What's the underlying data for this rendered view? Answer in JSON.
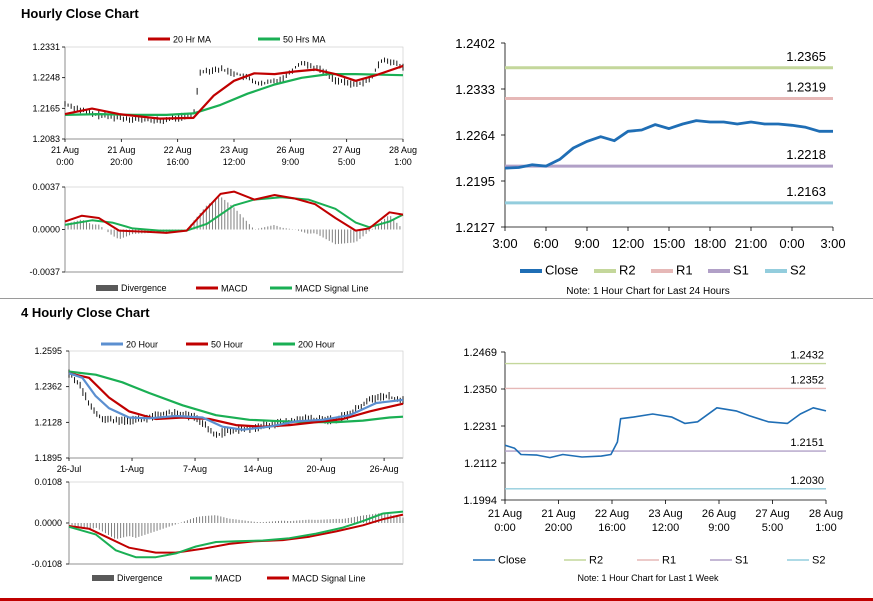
{
  "sections": {
    "hourly_title": "Hourly Close Chart",
    "four_hourly_title": "4 Hourly Close Chart"
  },
  "colors": {
    "close": "#1f6eb5",
    "ma20": "#c00000",
    "ma50": "#1aaf54",
    "ma200": "#1aaf54",
    "hourly_ma50": "#1aaf54",
    "macd_red": "#c00000",
    "signal_green": "#1aaf54",
    "divergence": "#7f7f7f",
    "r2": "#c4d79b",
    "r1": "#e6b8b7",
    "s1": "#b1a0c7",
    "s2": "#93cddd",
    "section_rule": "#9a9a9a",
    "bottom_rule": "#c00000"
  },
  "chart_data": [
    {
      "id": "hourly_price",
      "type": "line",
      "title": "Hourly Close Chart",
      "legend": [
        "20 Hr MA",
        "50 Hrs MA"
      ],
      "x_tick_labels": [
        [
          "21 Aug",
          "0:00"
        ],
        [
          "21 Aug",
          "20:00"
        ],
        [
          "22 Aug",
          "16:00"
        ],
        [
          "23 Aug",
          "12:00"
        ],
        [
          "26 Aug",
          "9:00"
        ],
        [
          "27 Aug",
          "5:00"
        ],
        [
          "28 Aug",
          "1:00"
        ]
      ],
      "y_tick_labels": [
        "1.2331",
        "1.2248",
        "1.2165",
        "1.2083"
      ],
      "ylim": [
        1.2083,
        1.2331
      ],
      "n_points": 100,
      "close": [
        [
          0,
          1.2178
        ],
        [
          8,
          1.215
        ],
        [
          16,
          1.214
        ],
        [
          28,
          1.2132
        ],
        [
          38,
          1.2148
        ],
        [
          40,
          1.2265
        ],
        [
          46,
          1.2272
        ],
        [
          52,
          1.2255
        ],
        [
          58,
          1.223
        ],
        [
          64,
          1.2245
        ],
        [
          70,
          1.229
        ],
        [
          76,
          1.2268
        ],
        [
          80,
          1.2242
        ],
        [
          85,
          1.223
        ],
        [
          90,
          1.224
        ],
        [
          94,
          1.23
        ],
        [
          97,
          1.229
        ],
        [
          100,
          1.2275
        ]
      ],
      "ma20": [
        [
          0,
          1.215
        ],
        [
          8,
          1.2165
        ],
        [
          16,
          1.215
        ],
        [
          28,
          1.2138
        ],
        [
          38,
          1.214
        ],
        [
          44,
          1.22
        ],
        [
          50,
          1.224
        ],
        [
          56,
          1.226
        ],
        [
          62,
          1.2258
        ],
        [
          68,
          1.2265
        ],
        [
          74,
          1.227
        ],
        [
          80,
          1.2258
        ],
        [
          86,
          1.224
        ],
        [
          92,
          1.2255
        ],
        [
          100,
          1.228
        ]
      ],
      "ma50": [
        [
          0,
          1.2148
        ],
        [
          10,
          1.215
        ],
        [
          20,
          1.2148
        ],
        [
          30,
          1.2148
        ],
        [
          38,
          1.2152
        ],
        [
          46,
          1.2175
        ],
        [
          54,
          1.2205
        ],
        [
          62,
          1.223
        ],
        [
          70,
          1.2248
        ],
        [
          78,
          1.2258
        ],
        [
          86,
          1.2258
        ],
        [
          100,
          1.2255
        ]
      ]
    },
    {
      "id": "hourly_macd",
      "type": "line",
      "legend": [
        "Divergence",
        "MACD",
        "MACD Signal Line"
      ],
      "y_tick_labels": [
        "0.0037",
        "0.0000",
        "-0.0037"
      ],
      "ylim": [
        -0.0037,
        0.0037
      ],
      "macd": [
        [
          0,
          0.0007
        ],
        [
          5,
          0.0012
        ],
        [
          10,
          0.001
        ],
        [
          16,
          -0.0001
        ],
        [
          24,
          -0.0002
        ],
        [
          30,
          -0.0003
        ],
        [
          36,
          -0.0001
        ],
        [
          40,
          0.0012
        ],
        [
          46,
          0.0031
        ],
        [
          50,
          0.0033
        ],
        [
          56,
          0.0026
        ],
        [
          62,
          0.003
        ],
        [
          68,
          0.0027
        ],
        [
          74,
          0.0022
        ],
        [
          80,
          0.001
        ],
        [
          86,
          -0.0001
        ],
        [
          90,
          0.0001
        ],
        [
          96,
          0.0015
        ],
        [
          100,
          0.0013
        ]
      ],
      "signal": [
        [
          0,
          0.0004
        ],
        [
          8,
          0.0008
        ],
        [
          14,
          0.0006
        ],
        [
          20,
          0.0001
        ],
        [
          28,
          -0.0001
        ],
        [
          36,
          -0.0001
        ],
        [
          42,
          0.0005
        ],
        [
          50,
          0.0021
        ],
        [
          56,
          0.0026
        ],
        [
          64,
          0.0028
        ],
        [
          72,
          0.0026
        ],
        [
          80,
          0.0018
        ],
        [
          86,
          0.0006
        ],
        [
          90,
          0.0002
        ],
        [
          96,
          0.0007
        ],
        [
          100,
          0.0013
        ]
      ]
    },
    {
      "id": "hourly_pivots",
      "type": "line",
      "legend": [
        "Close",
        "R2",
        "R1",
        "S1",
        "S2"
      ],
      "note": "Note: 1 Hour Chart for Last 24 Hours",
      "x_tick_labels": [
        "3:00",
        "6:00",
        "9:00",
        "12:00",
        "15:00",
        "18:00",
        "21:00",
        "0:00",
        "3:00"
      ],
      "y_tick_labels": [
        "1.2402",
        "1.2333",
        "1.2264",
        "1.2195",
        "1.2127"
      ],
      "ylim": [
        1.2127,
        1.2402
      ],
      "levels": {
        "R2": 1.2365,
        "R1": 1.2319,
        "S1": 1.2218,
        "S2": 1.2163
      },
      "level_labels": [
        "1.2365",
        "1.2319",
        "1.2218",
        "1.2163"
      ],
      "close": [
        1.2215,
        1.2216,
        1.222,
        1.2218,
        1.2228,
        1.2245,
        1.2255,
        1.2262,
        1.2256,
        1.227,
        1.2272,
        1.228,
        1.2274,
        1.2281,
        1.2286,
        1.2284,
        1.2284,
        1.2281,
        1.2284,
        1.2281,
        1.2281,
        1.2279,
        1.2276,
        1.227,
        1.227
      ]
    },
    {
      "id": "four_hourly_price",
      "type": "line",
      "title": "4 Hourly Close Chart",
      "legend": [
        "20 Hour",
        "50 Hour",
        "200 Hour"
      ],
      "x_tick_labels": [
        "26-Jul",
        "1-Aug",
        "7-Aug",
        "14-Aug",
        "20-Aug",
        "26-Aug"
      ],
      "y_tick_labels": [
        "1.2595",
        "1.2362",
        "1.2128",
        "1.1895"
      ],
      "ylim": [
        1.1895,
        1.2595
      ],
      "close": [
        [
          0,
          1.245
        ],
        [
          3,
          1.238
        ],
        [
          6,
          1.225
        ],
        [
          10,
          1.215
        ],
        [
          15,
          1.2135
        ],
        [
          22,
          1.215
        ],
        [
          30,
          1.219
        ],
        [
          38,
          1.216
        ],
        [
          44,
          1.204
        ],
        [
          48,
          1.208
        ],
        [
          55,
          1.209
        ],
        [
          62,
          1.212
        ],
        [
          70,
          1.215
        ],
        [
          78,
          1.214
        ],
        [
          84,
          1.218
        ],
        [
          90,
          1.228
        ],
        [
          95,
          1.23
        ],
        [
          100,
          1.227
        ]
      ],
      "ma20": [
        [
          0,
          1.245
        ],
        [
          4,
          1.242
        ],
        [
          8,
          1.23
        ],
        [
          12,
          1.222
        ],
        [
          18,
          1.216
        ],
        [
          24,
          1.2155
        ],
        [
          32,
          1.217
        ],
        [
          40,
          1.216
        ],
        [
          46,
          1.21
        ],
        [
          52,
          1.208
        ],
        [
          60,
          1.21
        ],
        [
          68,
          1.2135
        ],
        [
          76,
          1.2145
        ],
        [
          84,
          1.2175
        ],
        [
          92,
          1.2255
        ],
        [
          100,
          1.2275
        ]
      ],
      "ma50": [
        [
          0,
          1.245
        ],
        [
          6,
          1.242
        ],
        [
          12,
          1.229
        ],
        [
          18,
          1.22
        ],
        [
          26,
          1.215
        ],
        [
          34,
          1.216
        ],
        [
          42,
          1.215
        ],
        [
          50,
          1.211
        ],
        [
          58,
          1.21
        ],
        [
          66,
          1.211
        ],
        [
          74,
          1.213
        ],
        [
          82,
          1.215
        ],
        [
          90,
          1.22
        ],
        [
          100,
          1.225
        ]
      ],
      "ma200": [
        [
          0,
          1.246
        ],
        [
          8,
          1.244
        ],
        [
          16,
          1.239
        ],
        [
          24,
          1.232
        ],
        [
          34,
          1.224
        ],
        [
          44,
          1.2175
        ],
        [
          54,
          1.2145
        ],
        [
          64,
          1.2135
        ],
        [
          72,
          1.213
        ],
        [
          80,
          1.213
        ],
        [
          88,
          1.214
        ],
        [
          96,
          1.216
        ],
        [
          100,
          1.2165
        ]
      ]
    },
    {
      "id": "four_hourly_macd",
      "type": "line",
      "legend": [
        "Divergence",
        "MACD",
        "MACD Signal Line"
      ],
      "y_tick_labels": [
        "0.0108",
        "0.0000",
        "-0.0108"
      ],
      "ylim": [
        -0.0108,
        0.0108
      ],
      "macd": [
        [
          0,
          -0.001
        ],
        [
          8,
          -0.003
        ],
        [
          14,
          -0.0072
        ],
        [
          20,
          -0.009
        ],
        [
          26,
          -0.009
        ],
        [
          32,
          -0.008
        ],
        [
          38,
          -0.0062
        ],
        [
          44,
          -0.005
        ],
        [
          50,
          -0.0048
        ],
        [
          58,
          -0.0046
        ],
        [
          66,
          -0.004
        ],
        [
          74,
          -0.0028
        ],
        [
          82,
          -0.0012
        ],
        [
          88,
          0.0005
        ],
        [
          94,
          0.0025
        ],
        [
          100,
          0.003
        ]
      ],
      "signal": [
        [
          0,
          -0.0008
        ],
        [
          6,
          -0.0015
        ],
        [
          12,
          -0.004
        ],
        [
          18,
          -0.0065
        ],
        [
          26,
          -0.0078
        ],
        [
          32,
          -0.0078
        ],
        [
          40,
          -0.0068
        ],
        [
          48,
          -0.0055
        ],
        [
          56,
          -0.0048
        ],
        [
          64,
          -0.0045
        ],
        [
          72,
          -0.0036
        ],
        [
          80,
          -0.0022
        ],
        [
          88,
          -0.0006
        ],
        [
          94,
          0.001
        ],
        [
          100,
          0.0022
        ]
      ]
    },
    {
      "id": "weekly_pivots",
      "type": "line",
      "legend": [
        "Close",
        "R2",
        "R1",
        "S1",
        "S2"
      ],
      "note": "Note: 1 Hour Chart for Last 1 Week",
      "x_tick_labels": [
        [
          "21 Aug",
          "0:00"
        ],
        [
          "21 Aug",
          "20:00"
        ],
        [
          "22 Aug",
          "16:00"
        ],
        [
          "23 Aug",
          "12:00"
        ],
        [
          "26 Aug",
          "9:00"
        ],
        [
          "27 Aug",
          "5:00"
        ],
        [
          "28 Aug",
          "1:00"
        ]
      ],
      "y_tick_labels": [
        "1.2469",
        "1.2350",
        "1.2231",
        "1.2112",
        "1.1994"
      ],
      "ylim": [
        1.1994,
        1.2469
      ],
      "levels": {
        "R2": 1.2432,
        "R1": 1.2352,
        "S1": 1.2151,
        "S2": 1.203
      },
      "level_labels": [
        "1.2432",
        "1.2352",
        "1.2151",
        "1.2030"
      ],
      "close": [
        [
          0,
          1.217
        ],
        [
          3,
          1.216
        ],
        [
          5,
          1.214
        ],
        [
          10,
          1.2138
        ],
        [
          14,
          1.213
        ],
        [
          18,
          1.214
        ],
        [
          24,
          1.2132
        ],
        [
          30,
          1.2135
        ],
        [
          33,
          1.214
        ],
        [
          35,
          1.218
        ],
        [
          36,
          1.2255
        ],
        [
          40,
          1.226
        ],
        [
          46,
          1.227
        ],
        [
          52,
          1.226
        ],
        [
          56,
          1.224
        ],
        [
          60,
          1.2245
        ],
        [
          66,
          1.229
        ],
        [
          72,
          1.228
        ],
        [
          76,
          1.2265
        ],
        [
          82,
          1.2245
        ],
        [
          88,
          1.224
        ],
        [
          92,
          1.227
        ],
        [
          96,
          1.229
        ],
        [
          100,
          1.228
        ]
      ]
    }
  ]
}
